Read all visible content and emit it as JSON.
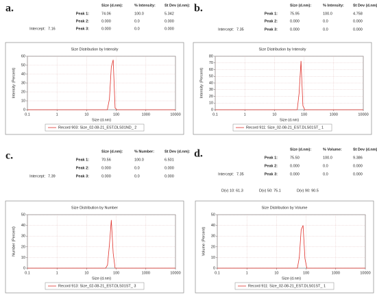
{
  "panels": [
    {
      "label": "a.",
      "headers": [
        "Size (d.nm):",
        "% Intensity:",
        "St Dev (d.nm):"
      ],
      "rows": [
        [
          "Peak 1:",
          "74.06",
          "100.0",
          "5.342"
        ],
        [
          "Peak 2:",
          "0.000",
          "0.0",
          "0.000"
        ],
        [
          "Peak 3:",
          "0.000",
          "0.0",
          "0.000"
        ]
      ],
      "intercept_label": "Intercept:",
      "intercept": "7.16"
    },
    {
      "label": "b.",
      "headers": [
        "Size (d.nm):",
        "% Intensity:",
        "St Dev (d.nm):"
      ],
      "rows": [
        [
          "Peak 1:",
          "75.95",
          "100.0",
          "4.758"
        ],
        [
          "Peak 2:",
          "0.000",
          "0.0",
          "0.000"
        ],
        [
          "Peak 3:",
          "0.000",
          "0.0",
          "0.000"
        ]
      ],
      "intercept_label": "Intercept:",
      "intercept": "7.35"
    },
    {
      "label": "c.",
      "headers": [
        "Size (d.nm):",
        "% Number:",
        "St Dev (d.nm):"
      ],
      "rows": [
        [
          "Peak 1:",
          "70.56",
          "100.0",
          "6.501"
        ],
        [
          "Peak 2:",
          "0.000",
          "0.0",
          "0.000"
        ],
        [
          "Peak 3:",
          "0.000",
          "0.0",
          "0.000"
        ]
      ],
      "intercept_label": "Intercept:",
      "intercept": "7.39"
    },
    {
      "label": "d.",
      "headers": [
        "Size (d.nm):",
        "% Volume:",
        "St Dev (d.nm):"
      ],
      "rows": [
        [
          "Peak 1:",
          "75.50",
          "100.0",
          "9.386"
        ],
        [
          "Peak 2:",
          "0.000",
          "0.0",
          "0.000"
        ],
        [
          "Peak 3:",
          "0.000",
          "0.0",
          "0.000"
        ]
      ],
      "intercept_label": "Intercept:",
      "intercept": "7.35",
      "dv": [
        "D(v) 10: 61.3",
        "D(v) 50: 75.1",
        "D(v) 90: 90.5"
      ]
    }
  ],
  "chart_data": [
    {
      "type": "line",
      "title": "Size Distribution by Intensity",
      "x_label": "Size (d.nm)",
      "y_label": "Intensity (Percent)",
      "x": [
        0.1,
        50,
        58.8,
        68.1,
        78.8,
        91.3,
        105.7,
        10000
      ],
      "series": [
        {
          "name": "Record 903: Size_02-08-21_EST.DLS01ND_ 2",
          "color": "#e0302a",
          "values": [
            0,
            0,
            12,
            48,
            56,
            2,
            0,
            0
          ]
        }
      ],
      "log_x": true,
      "grid": true,
      "xlim": [
        0.1,
        10000
      ],
      "xticks": [
        0.1,
        1,
        10,
        100,
        1000,
        10000
      ],
      "ylim": [
        0,
        60
      ],
      "yticks": [
        0,
        10,
        20,
        30,
        40,
        50,
        60
      ]
    },
    {
      "type": "line",
      "title": "Size Distribution by Intensity",
      "x_label": "Size (d.nm)",
      "y_label": "Intensity (Percent)",
      "x": [
        0.1,
        58.8,
        68.1,
        78.8,
        91.3,
        105.7,
        10000
      ],
      "series": [
        {
          "name": "Record 911: Size_02-08-21_EST.DLS01ST_ 1",
          "color": "#e0302a",
          "values": [
            0,
            0,
            25,
            73,
            6,
            0,
            0
          ]
        }
      ],
      "log_x": true,
      "grid": true,
      "xlim": [
        0.1,
        10000
      ],
      "xticks": [
        0.1,
        1,
        10,
        100,
        1000,
        10000
      ],
      "ylim": [
        0,
        80
      ],
      "yticks": [
        0,
        10,
        20,
        30,
        40,
        50,
        60,
        70,
        80
      ]
    },
    {
      "type": "line",
      "title": "Size Distribution by Number",
      "x_label": "Size (d.nm)",
      "y_label": "Number (Percent)",
      "x": [
        0.1,
        43.8,
        50.7,
        58.8,
        68.1,
        78.8,
        91.3,
        10000
      ],
      "series": [
        {
          "name": "Record 913: Size_02-08-21_EST.DLS01ST_ 3",
          "color": "#e0302a",
          "values": [
            0,
            0,
            3,
            22,
            45,
            14,
            0,
            0
          ]
        }
      ],
      "log_x": true,
      "grid": true,
      "xlim": [
        0.1,
        10000
      ],
      "xticks": [
        0.1,
        1,
        10,
        100,
        1000,
        10000
      ],
      "ylim": [
        0,
        50
      ],
      "yticks": [
        0,
        10,
        20,
        30,
        40,
        50
      ]
    },
    {
      "type": "line",
      "title": "Size Distribution by Volume",
      "x_label": "Size (d.nm)",
      "y_label": "Volume (Percent)",
      "x": [
        0.1,
        50.7,
        58.8,
        68.1,
        78.8,
        91.3,
        105.7,
        10000
      ],
      "series": [
        {
          "name": "Record 911: Size_02-08-21_EST.DLS01ST_ 1",
          "color": "#e0302a",
          "values": [
            0,
            0,
            10,
            36,
            40,
            9,
            0,
            0
          ]
        }
      ],
      "log_x": true,
      "grid": true,
      "xlim": [
        0.1,
        10000
      ],
      "xticks": [
        0.1,
        1,
        10,
        100,
        1000,
        10000
      ],
      "ylim": [
        0,
        50
      ],
      "yticks": [
        0,
        10,
        20,
        30,
        40,
        50
      ]
    }
  ]
}
